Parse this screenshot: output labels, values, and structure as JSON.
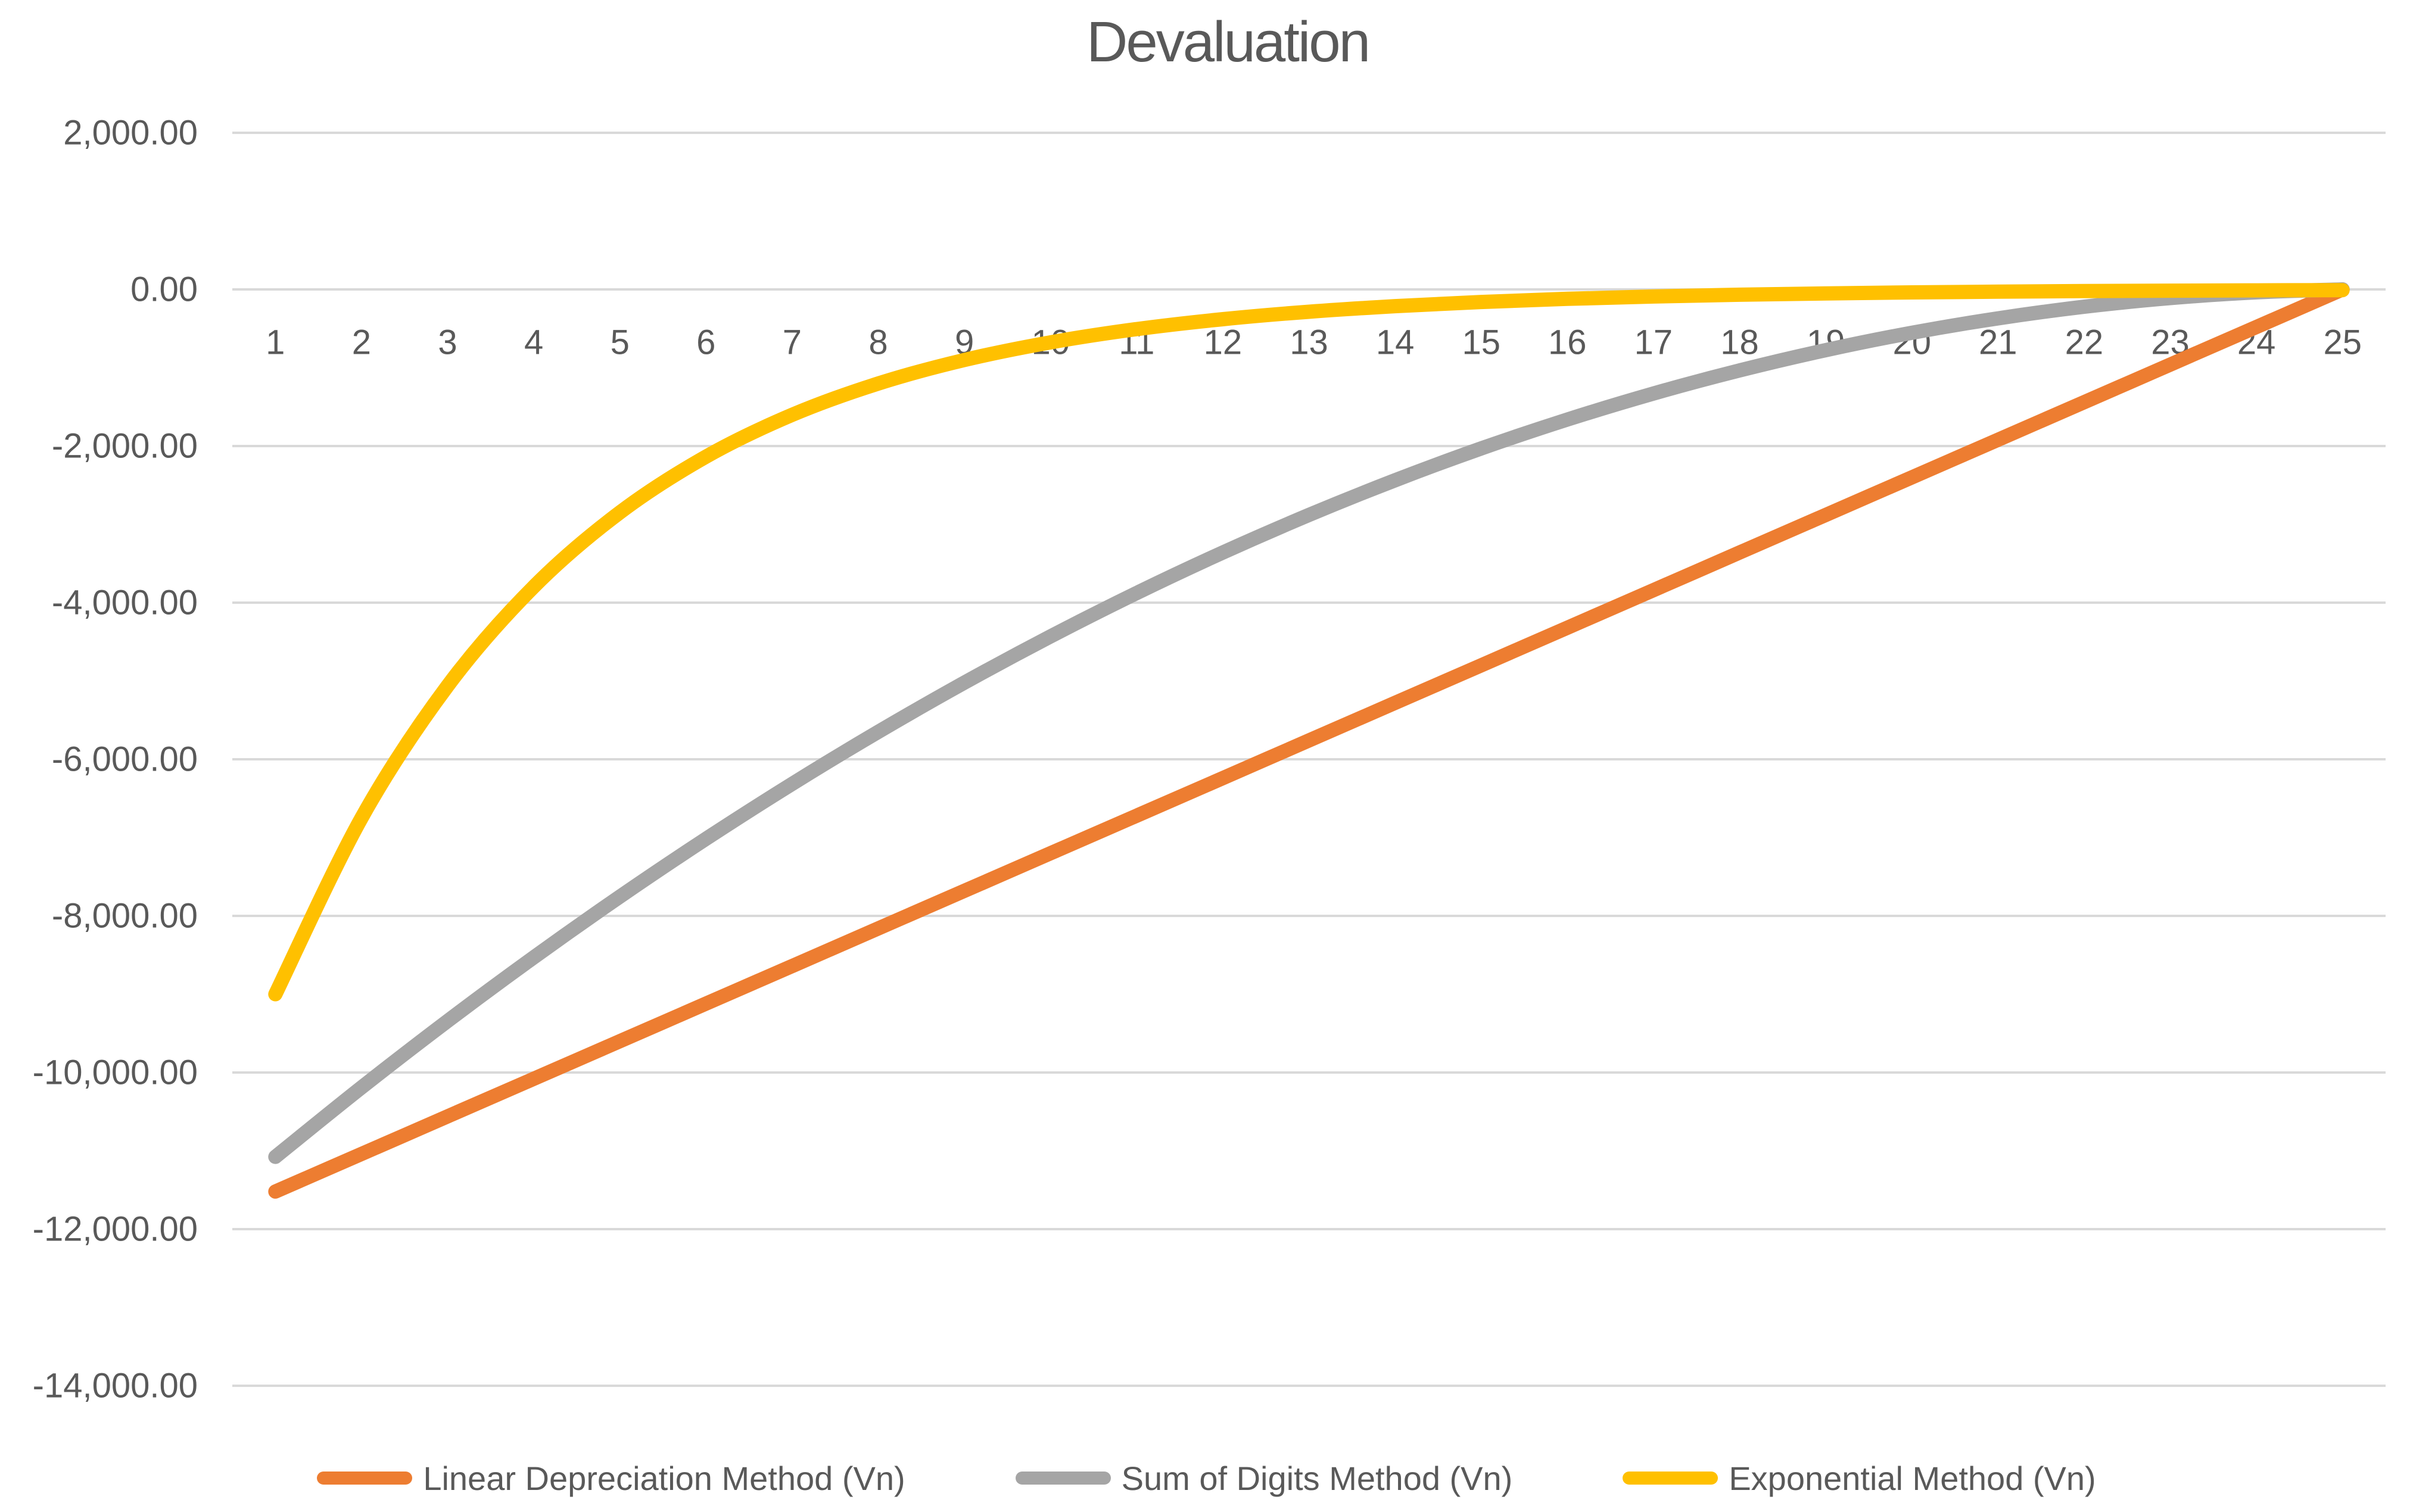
{
  "chart": {
    "title": "Devaluation",
    "title_color": "#595959",
    "axis_text_color": "#595959",
    "gridline_color": "#D9D9D9",
    "background_color": "#FFFFFF"
  },
  "chart_data": {
    "type": "line",
    "title": "Devaluation",
    "smooth_lines": true,
    "grid": "horizontal",
    "legend_position": "bottom",
    "categories": [
      1,
      2,
      3,
      4,
      5,
      6,
      7,
      8,
      9,
      10,
      11,
      12,
      13,
      14,
      15,
      16,
      17,
      18,
      19,
      20,
      21,
      22,
      23,
      24,
      25
    ],
    "y_axis": {
      "min": -14000,
      "max": 2000,
      "tick_interval": 2000,
      "tick_labels_top_to_bottom": [
        "2,000.00",
        "0.00",
        "-2,000.00",
        "-4,000.00",
        "-6,000.00",
        "-8,000.00",
        "-10,000.00",
        "-12,000.00",
        "-14,000.00"
      ]
    },
    "series": [
      {
        "name": "Linear Depreciation Method (Vn)",
        "color": "#ED7D31",
        "values": [
          -11520.0,
          -11040.0,
          -10560.0,
          -10080.0,
          -9600.0,
          -9120.0,
          -8640.0,
          -8160.0,
          -7680.0,
          -7200.0,
          -6720.0,
          -6240.0,
          -5760.0,
          -5280.0,
          -4800.0,
          -4320.0,
          -3840.0,
          -3360.0,
          -2880.0,
          -2400.0,
          -1920.0,
          -1440.0,
          -960.0,
          -480.0,
          0.0
        ]
      },
      {
        "name": "Sum of Digits Method (Vn)",
        "color": "#A5A5A5",
        "values": [
          -11076.92,
          -10190.77,
          -9341.54,
          -8529.23,
          -7753.85,
          -7015.38,
          -6313.85,
          -5649.23,
          -5021.54,
          -4430.77,
          -3876.92,
          -3360.0,
          -2880.0,
          -2436.92,
          -2030.77,
          -1661.54,
          -1329.23,
          -1033.85,
          -775.38,
          -553.85,
          -369.23,
          -221.54,
          -110.77,
          -36.92,
          0.0
        ]
      },
      {
        "name": "Exponential Method (Vn)",
        "color": "#FFC000",
        "values": [
          -9000.0,
          -6750.0,
          -5062.5,
          -3796.88,
          -2847.66,
          -2135.74,
          -1601.81,
          -1201.36,
          -901.02,
          -675.76,
          -506.82,
          -380.12,
          -285.09,
          -213.82,
          -160.36,
          -120.27,
          -90.2,
          -67.65,
          -50.74,
          -38.06,
          -28.54,
          -21.41,
          -16.05,
          -12.04,
          -9.03
        ]
      }
    ]
  }
}
